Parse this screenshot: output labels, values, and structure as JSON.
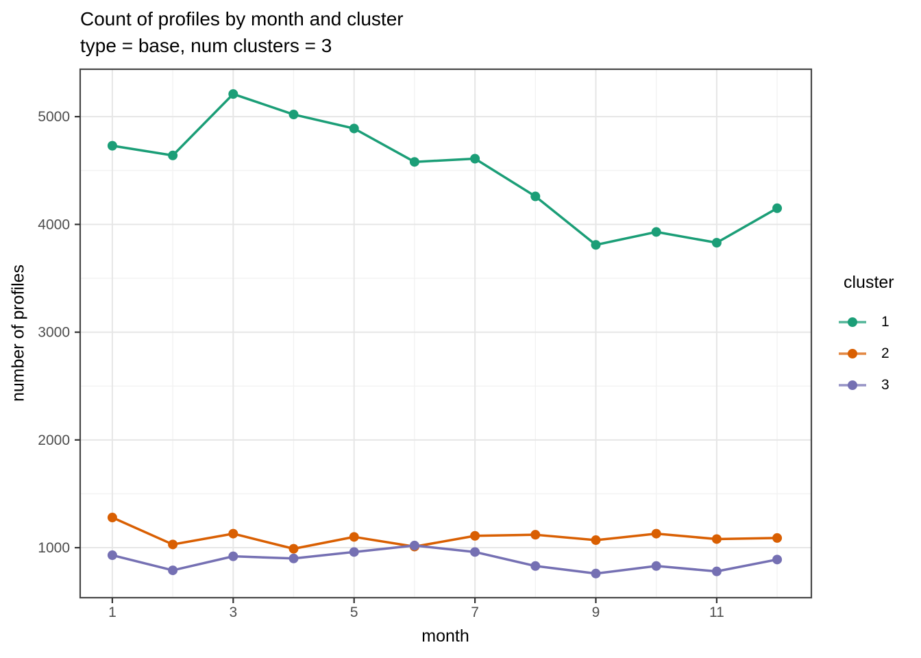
{
  "title": "Count of profiles by month and cluster",
  "subtitle": "type = base, num clusters = 3",
  "chart_data": {
    "type": "line",
    "x": [
      1,
      2,
      3,
      4,
      5,
      6,
      7,
      8,
      9,
      10,
      11,
      12
    ],
    "series": [
      {
        "name": "1",
        "color": "#1B9E77",
        "values": [
          4730,
          4640,
          5210,
          5020,
          4890,
          4580,
          4610,
          4260,
          3810,
          3930,
          3830,
          4150
        ]
      },
      {
        "name": "2",
        "color": "#D95F02",
        "values": [
          1280,
          1030,
          1130,
          990,
          1100,
          1010,
          1110,
          1120,
          1070,
          1130,
          1080,
          1090
        ]
      },
      {
        "name": "3",
        "color": "#7570B3",
        "values": [
          930,
          790,
          920,
          900,
          960,
          1020,
          960,
          830,
          760,
          830,
          780,
          890
        ]
      }
    ],
    "xlabel": "month",
    "ylabel": "number of profiles",
    "legend_title": "cluster",
    "legend_position": "right",
    "x_ticks": [
      1,
      3,
      5,
      7,
      9,
      11
    ],
    "x_minor": [
      2,
      4,
      6,
      8,
      10,
      12
    ],
    "y_ticks": [
      1000,
      2000,
      3000,
      4000,
      5000
    ],
    "y_minor": [
      1500,
      2500,
      3500,
      4500
    ],
    "xlim": [
      0.468,
      12.566
    ],
    "ylim": [
      536,
      5440
    ],
    "grid": true
  },
  "colors": {
    "background": "#FFFFFF",
    "panel_border": "#474747",
    "major_grid": "#E6E6E6",
    "minor_grid": "#F1F1F1",
    "tick_mark": "#333333",
    "tick_label": "#4D4D4D"
  }
}
